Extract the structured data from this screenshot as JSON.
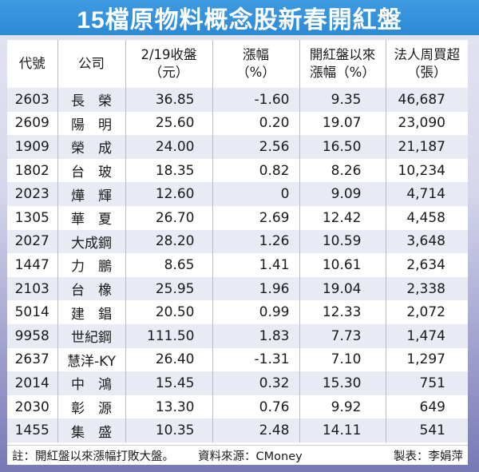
{
  "title": "15檔原物料概念股新春開紅盤",
  "table": {
    "headers": [
      {
        "line1": "代號",
        "line2": ""
      },
      {
        "line1": "公司",
        "line2": ""
      },
      {
        "line1": "2/19收盤",
        "line2": "（元）"
      },
      {
        "line1": "漲幅",
        "line2": "（%）"
      },
      {
        "line1": "開紅盤以來",
        "line2": "漲幅（%）"
      },
      {
        "line1": "法人周買超",
        "line2": "（張）"
      }
    ],
    "rows": [
      {
        "code": "2603",
        "name": "長　榮",
        "close": "36.85",
        "change": "-1.60",
        "since_open": "9.35",
        "net_buy": "46,687"
      },
      {
        "code": "2609",
        "name": "陽　明",
        "close": "25.60",
        "change": "0.20",
        "since_open": "19.07",
        "net_buy": "23,090"
      },
      {
        "code": "1909",
        "name": "榮　成",
        "close": "24.00",
        "change": "2.56",
        "since_open": "16.50",
        "net_buy": "21,187"
      },
      {
        "code": "1802",
        "name": "台　玻",
        "close": "18.35",
        "change": "0.82",
        "since_open": "8.26",
        "net_buy": "10,234"
      },
      {
        "code": "2023",
        "name": "燁　輝",
        "close": "12.60",
        "change": "0",
        "since_open": "9.09",
        "net_buy": "4,714"
      },
      {
        "code": "1305",
        "name": "華　夏",
        "close": "26.70",
        "change": "2.69",
        "since_open": "12.42",
        "net_buy": "4,458"
      },
      {
        "code": "2027",
        "name": "大成鋼",
        "close": "28.20",
        "change": "1.26",
        "since_open": "10.59",
        "net_buy": "3,648"
      },
      {
        "code": "1447",
        "name": "力　鵬",
        "close": "8.65",
        "change": "1.41",
        "since_open": "10.61",
        "net_buy": "2,634"
      },
      {
        "code": "2103",
        "name": "台　橡",
        "close": "25.95",
        "change": "1.96",
        "since_open": "19.04",
        "net_buy": "2,338"
      },
      {
        "code": "5014",
        "name": "建　錩",
        "close": "20.50",
        "change": "0.99",
        "since_open": "12.33",
        "net_buy": "2,072"
      },
      {
        "code": "9958",
        "name": "世紀鋼",
        "close": "111.50",
        "change": "1.83",
        "since_open": "7.73",
        "net_buy": "1,474"
      },
      {
        "code": "2637",
        "name": "慧洋-KY",
        "close": "26.40",
        "change": "-1.31",
        "since_open": "7.10",
        "net_buy": "1,297"
      },
      {
        "code": "2014",
        "name": "中　鴻",
        "close": "15.45",
        "change": "0.32",
        "since_open": "15.30",
        "net_buy": "751"
      },
      {
        "code": "2030",
        "name": "彰　源",
        "close": "13.30",
        "change": "0.76",
        "since_open": "9.92",
        "net_buy": "649"
      },
      {
        "code": "1455",
        "name": "集　盛",
        "close": "10.35",
        "change": "2.48",
        "since_open": "14.11",
        "net_buy": "541"
      }
    ]
  },
  "footer": {
    "note": "註：開紅盤以來漲幅打敗大盤。",
    "source": "資料來源：CMoney",
    "author": "製表：李娟萍"
  },
  "colors": {
    "title_bg": "#2c8ad6",
    "row_shade": "#e8eaf4",
    "frame_top": "#e4e5f2",
    "frame_bottom": "#7878b6"
  }
}
